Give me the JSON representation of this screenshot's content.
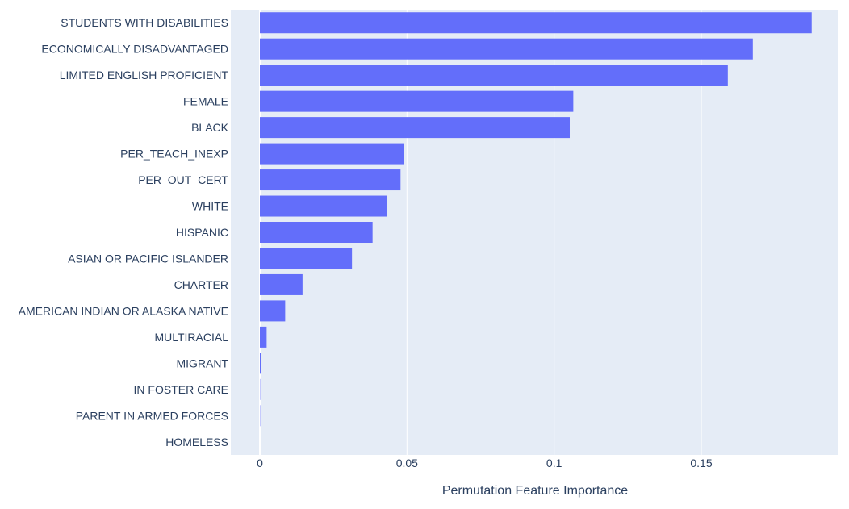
{
  "chart_data": {
    "type": "bar",
    "orientation": "horizontal",
    "xlabel": "Permutation Feature Importance",
    "ylabel": "",
    "xlim": [
      -0.01,
      0.19
    ],
    "xticks": [
      0,
      0.05,
      0.1,
      0.15
    ],
    "xtick_labels": [
      "0",
      "0.05",
      "0.1",
      "0.15"
    ],
    "bar_color": "#636efa",
    "plot_bg": "#e5ecf6",
    "grid": true,
    "categories": [
      "STUDENTS WITH DISABILITIES",
      "ECONOMICALLY DISADVANTAGED",
      "LIMITED ENGLISH PROFICIENT",
      "FEMALE",
      "BLACK",
      "PER_TEACH_INEXP",
      "PER_OUT_CERT",
      "WHITE",
      "HISPANIC",
      "ASIAN OR PACIFIC ISLANDER",
      "CHARTER",
      "AMERICAN INDIAN OR ALASKA NATIVE",
      "MULTIRACIAL",
      "MIGRANT",
      "IN FOSTER CARE",
      "PARENT IN ARMED FORCES",
      "HOMELESS"
    ],
    "values": [
      0.1875,
      0.1675,
      0.159,
      0.1065,
      0.1053,
      0.0489,
      0.0478,
      0.0432,
      0.0383,
      0.0313,
      0.0145,
      0.0086,
      0.0023,
      0.0003,
      0.0001,
      0.0001,
      0.0
    ]
  }
}
